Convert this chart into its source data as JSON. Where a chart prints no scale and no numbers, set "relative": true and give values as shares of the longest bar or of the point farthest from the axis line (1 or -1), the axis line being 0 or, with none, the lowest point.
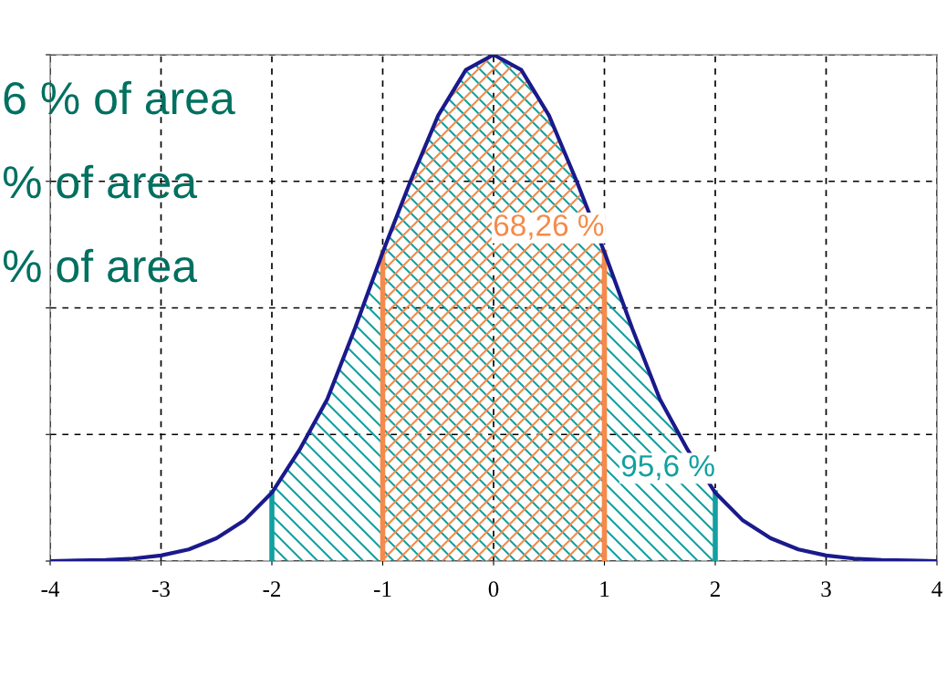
{
  "chart_data": {
    "type": "line",
    "relative": true,
    "x": [
      -4,
      -3.75,
      -3.5,
      -3.25,
      -3,
      -2.75,
      -2.5,
      -2.25,
      -2,
      -1.75,
      -1.5,
      -1.25,
      -1,
      -0.75,
      -0.5,
      -0.25,
      0,
      0.25,
      0.5,
      0.75,
      1,
      1.25,
      1.5,
      1.75,
      2,
      2.25,
      2.5,
      2.75,
      3,
      3.25,
      3.5,
      3.75,
      4
    ],
    "series": [
      {
        "color": "#1a1a8c",
        "values": [
          0,
          0.001,
          0.002,
          0.005,
          0.011,
          0.023,
          0.045,
          0.08,
          0.135,
          0.22,
          0.32,
          0.46,
          0.61,
          0.75,
          0.88,
          0.97,
          1,
          0.97,
          0.88,
          0.75,
          0.61,
          0.46,
          0.32,
          0.22,
          0.135,
          0.08,
          0.045,
          0.023,
          0.011,
          0.005,
          0.002,
          0.001,
          0
        ]
      }
    ],
    "xlim": [
      -4,
      4
    ],
    "xticks": [
      -4,
      -3,
      -2,
      -1,
      0,
      1,
      2,
      3,
      4
    ],
    "grid": true,
    "tick_labels": "x",
    "marker": "none",
    "line_style": "solid",
    "bands": [
      {
        "axis": "x",
        "from": -2,
        "to": 2,
        "label": "95,6 %",
        "color": "#12a0a0"
      },
      {
        "axis": "x",
        "from": -1,
        "to": 1,
        "label": "68,26 %",
        "color": "#f58a4a"
      }
    ],
    "ref_lines": [
      {
        "axis": "x",
        "value": -2,
        "color": "#12a0a0"
      },
      {
        "axis": "x",
        "value": 2,
        "color": "#12a0a0"
      },
      {
        "axis": "x",
        "value": -1,
        "color": "#f58a4a"
      },
      {
        "axis": "x",
        "value": 1,
        "color": "#f58a4a"
      }
    ],
    "annotations": [
      "6 % of area",
      "% of area",
      "% of area"
    ]
  }
}
